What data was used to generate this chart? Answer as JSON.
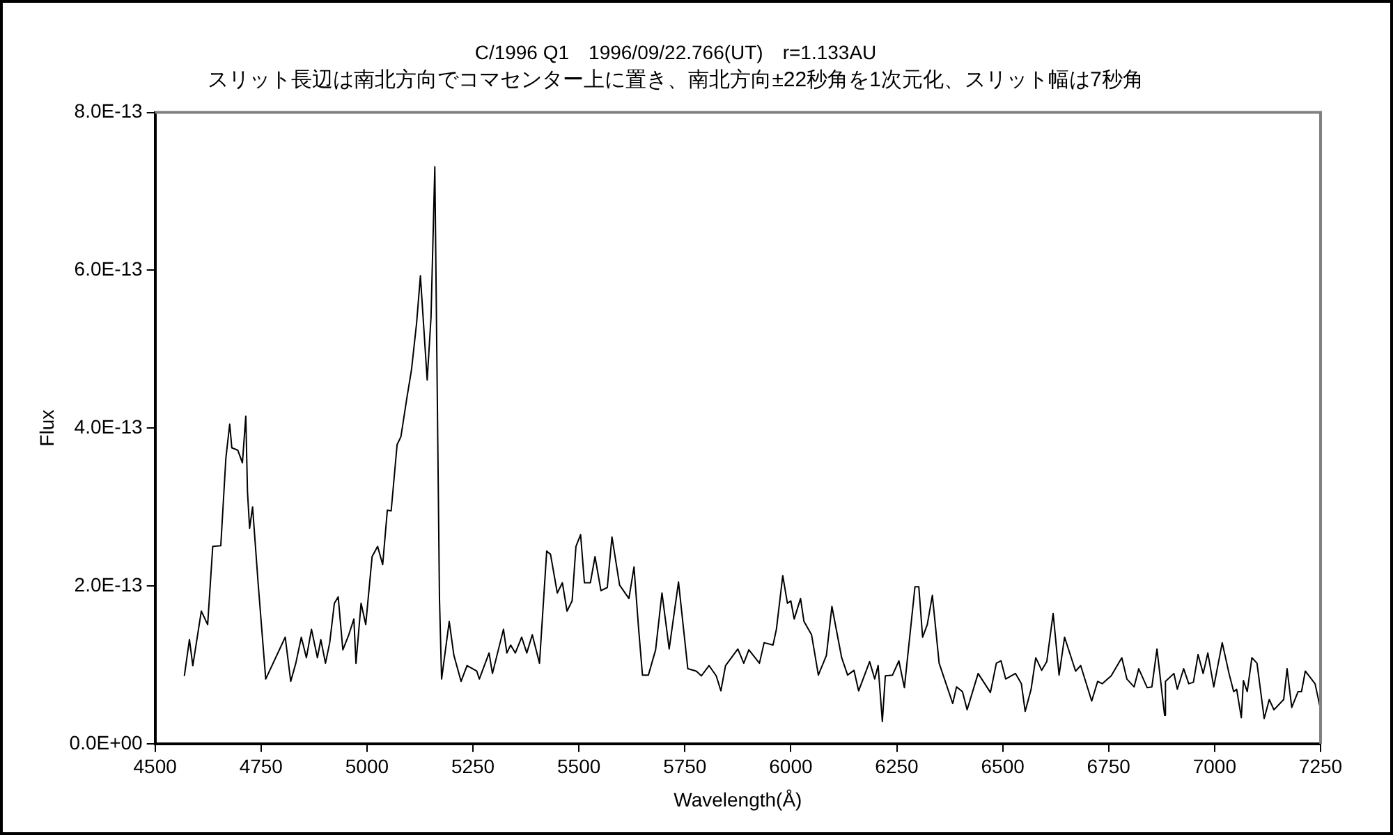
{
  "chart_data": {
    "type": "line",
    "title": "C/1996 Q1　1996/09/22.766(UT)　r=1.133AU",
    "subtitle": "スリット長辺は南北方向でコマセンター上に置き、南北方向±22秒角を1次元化、スリット幅は7秒角",
    "xlabel": "Wavelength(Å)",
    "ylabel": "Flux",
    "xlim": [
      4500,
      7250
    ],
    "xticks": [
      4500,
      4750,
      5000,
      5250,
      5500,
      5750,
      6000,
      6250,
      6500,
      6750,
      7000,
      7250
    ],
    "ylim": [
      0,
      8e-13
    ],
    "yticks": [
      {
        "value": 0,
        "label": "0.0E+00"
      },
      {
        "value": 2e-13,
        "label": "2.0E-13"
      },
      {
        "value": 4e-13,
        "label": "4.0E-13"
      },
      {
        "value": 6e-13,
        "label": "6.0E-13"
      },
      {
        "value": 8e-13,
        "label": "8.0E-13"
      }
    ],
    "grid": false,
    "legend": false,
    "marker": "none",
    "line_style": "solid",
    "series": [
      {
        "color": "#000000",
        "x": [
          4569,
          4581,
          4589,
          4609,
          4624,
          4636,
          4655,
          4667,
          4676,
          4681,
          4695,
          4706,
          4714,
          4718,
          4723,
          4730,
          4743,
          4761,
          4807,
          4820,
          4832,
          4845,
          4857,
          4869,
          4883,
          4891,
          4902,
          4912,
          4923,
          4932,
          4943,
          4957,
          4969,
          4974,
          4986,
          4997,
          5012,
          5025,
          5037,
          5048,
          5057,
          5071,
          5080,
          5094,
          5105,
          5117,
          5126,
          5142,
          5151,
          5160,
          5171,
          5176,
          5194,
          5205,
          5222,
          5236,
          5259,
          5265,
          5288,
          5296,
          5322,
          5330,
          5339,
          5350,
          5365,
          5377,
          5390,
          5407,
          5424,
          5433,
          5449,
          5461,
          5472,
          5484,
          5493,
          5504,
          5513,
          5527,
          5538,
          5552,
          5567,
          5578,
          5596,
          5618,
          5630,
          5641,
          5650,
          5664,
          5681,
          5696,
          5713,
          5735,
          5757,
          5777,
          5789,
          5807,
          5824,
          5835,
          5846,
          5875,
          5889,
          5901,
          5926,
          5937,
          5958,
          5966,
          5981,
          5992,
          6000,
          6008,
          6023,
          6031,
          6049,
          6065,
          6084,
          6097,
          6120,
          6134,
          6149,
          6160,
          6186,
          6198,
          6206,
          6216,
          6223,
          6240,
          6255,
          6268,
          6293,
          6302,
          6311,
          6322,
          6334,
          6350,
          6382,
          6391,
          6405,
          6416,
          6442,
          6471,
          6485,
          6496,
          6507,
          6530,
          6544,
          6553,
          6567,
          6578,
          6592,
          6604,
          6619,
          6633,
          6646,
          6672,
          6684,
          6710,
          6724,
          6735,
          6756,
          6781,
          6793,
          6810,
          6821,
          6841,
          6852,
          6864,
          6882,
          6884,
          6904,
          6912,
          6927,
          6939,
          6950,
          6961,
          6973,
          6984,
          6998,
          7018,
          7034,
          7045,
          7052,
          7063,
          7068,
          7077,
          7088,
          7100,
          7117,
          7129,
          7140,
          7163,
          7171,
          7182,
          7197,
          7205,
          7214,
          7237,
          7249
        ],
        "values": [
          8.6e-14,
          1.32e-13,
          9.9e-14,
          1.68e-13,
          1.51e-13,
          2.5e-13,
          2.51e-13,
          3.62e-13,
          4.05e-13,
          3.75e-13,
          3.72e-13,
          3.56e-13,
          4.15e-13,
          3.19e-13,
          2.73e-13,
          3e-13,
          2.04e-13,
          8.2e-14,
          1.35e-13,
          7.9e-14,
          1.02e-13,
          1.35e-13,
          1.09e-13,
          1.45e-13,
          1.09e-13,
          1.32e-13,
          1.02e-13,
          1.28e-13,
          1.78e-13,
          1.86e-13,
          1.19e-13,
          1.38e-13,
          1.58e-13,
          1.02e-13,
          1.78e-13,
          1.51e-13,
          2.37e-13,
          2.5e-13,
          2.27e-13,
          2.96e-13,
          2.95e-13,
          3.79e-13,
          3.89e-13,
          4.38e-13,
          4.74e-13,
          5.33e-13,
          5.93e-13,
          4.61e-13,
          5.4e-13,
          7.31e-13,
          1.84e-13,
          8.2e-14,
          1.55e-13,
          1.12e-13,
          7.9e-14,
          9.9e-14,
          9.2e-14,
          8.2e-14,
          1.15e-13,
          8.9e-14,
          1.45e-13,
          1.15e-13,
          1.25e-13,
          1.15e-13,
          1.35e-13,
          1.15e-13,
          1.38e-13,
          1.02e-13,
          2.44e-13,
          2.4e-13,
          1.91e-13,
          2.04e-13,
          1.68e-13,
          1.81e-13,
          2.5e-13,
          2.65e-13,
          2.04e-13,
          2.04e-13,
          2.37e-13,
          1.94e-13,
          1.98e-13,
          2.62e-13,
          2.01e-13,
          1.84e-13,
          2.24e-13,
          1.45e-13,
          8.7e-14,
          8.7e-14,
          1.19e-13,
          1.91e-13,
          1.2e-13,
          2.05e-13,
          9.5e-14,
          9.2e-14,
          8.6e-14,
          9.9e-14,
          8.6e-14,
          6.7e-14,
          9.9e-14,
          1.2e-13,
          1.02e-13,
          1.19e-13,
          1.02e-13,
          1.28e-13,
          1.25e-13,
          1.45e-13,
          2.13e-13,
          1.78e-13,
          1.81e-13,
          1.58e-13,
          1.84e-13,
          1.55e-13,
          1.38e-13,
          8.7e-14,
          1.12e-13,
          1.74e-13,
          1.09e-13,
          8.7e-14,
          9.3e-14,
          6.7e-14,
          1.04e-13,
          8.2e-14,
          9.9e-14,
          2.8e-14,
          8.6e-14,
          8.7e-14,
          1.05e-13,
          7.1e-14,
          1.99e-13,
          1.99e-13,
          1.35e-13,
          1.51e-13,
          1.88e-13,
          1.02e-13,
          5.1e-14,
          7.2e-14,
          6.6e-14,
          4.3e-14,
          8.9e-14,
          6.5e-14,
          1.02e-13,
          1.05e-13,
          8.2e-14,
          8.9e-14,
          7.6e-14,
          4.1e-14,
          6.9e-14,
          1.09e-13,
          9.3e-14,
          1.04e-13,
          1.65e-13,
          8.7e-14,
          1.35e-13,
          9.2e-14,
          9.9e-14,
          5.4e-14,
          7.9e-14,
          7.6e-14,
          8.6e-14,
          1.09e-13,
          8.2e-14,
          7.2e-14,
          9.5e-14,
          7.1e-14,
          7.2e-14,
          1.2e-13,
          3.6e-14,
          7.9e-14,
          8.9e-14,
          6.9e-14,
          9.5e-14,
          7.6e-14,
          7.8e-14,
          1.13e-13,
          8.9e-14,
          1.15e-13,
          7.2e-14,
          1.28e-13,
          8.9e-14,
          6.6e-14,
          6.9e-14,
          3.3e-14,
          8e-14,
          6.6e-14,
          1.09e-13,
          1.02e-13,
          3.2e-14,
          5.6e-14,
          4.3e-14,
          5.6e-14,
          9.5e-14,
          4.6e-14,
          6.6e-14,
          6.6e-14,
          9.2e-14,
          7.6e-14,
          4.6e-14
        ]
      }
    ]
  }
}
